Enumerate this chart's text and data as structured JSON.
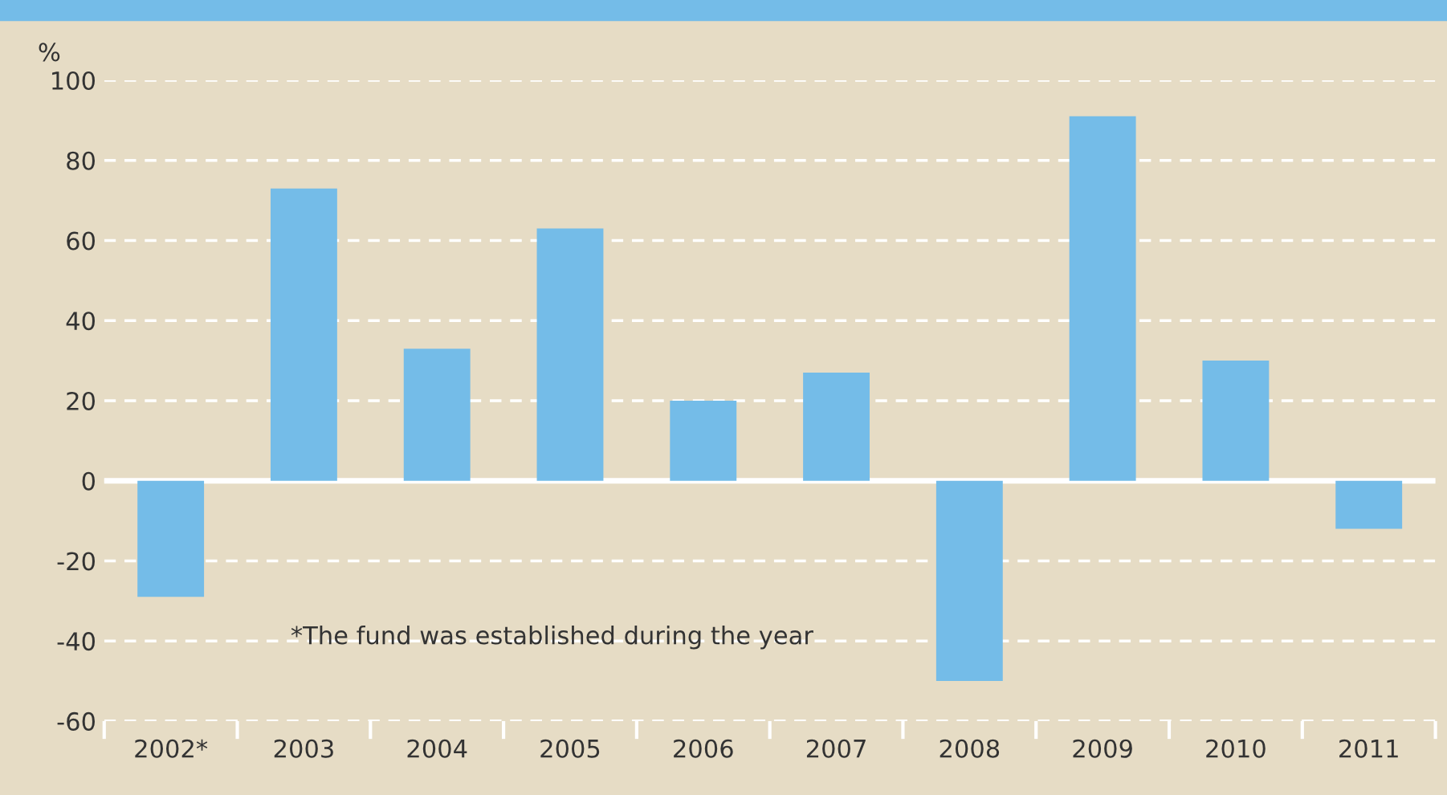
{
  "chart_data": {
    "type": "bar",
    "ylabel": "%",
    "categories": [
      "2002*",
      "2003",
      "2004",
      "2005",
      "2006",
      "2007",
      "2008",
      "2009",
      "2010",
      "2011"
    ],
    "values": [
      -29,
      73,
      33,
      63,
      20,
      27,
      -50,
      91,
      30,
      -12
    ],
    "color": "#74bce8",
    "ylim": [
      -60,
      100
    ],
    "yticks": [
      -60,
      -40,
      -20,
      0,
      20,
      40,
      60,
      80,
      100
    ],
    "grid": "y",
    "ref_lines": [
      {
        "axis": "y",
        "value": 0,
        "color": "#ffffff",
        "line_style": "solid"
      }
    ],
    "annotations": [
      "*The fund was established during the year"
    ]
  }
}
